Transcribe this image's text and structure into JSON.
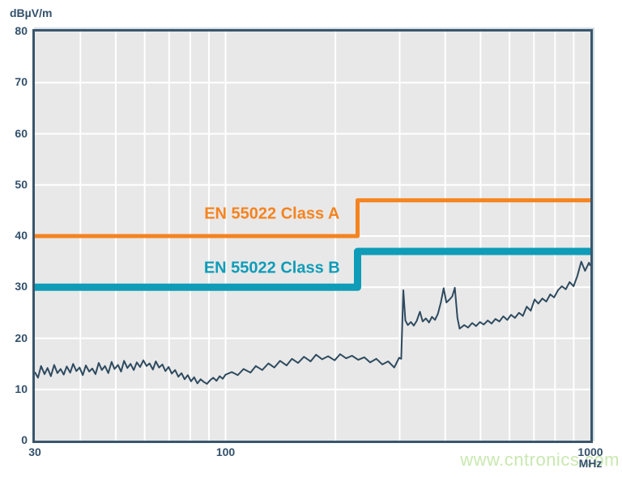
{
  "page": {
    "watermark": "www.cntronics.com"
  },
  "chart_data": {
    "type": "line",
    "title": "",
    "ylabel": "dBµV/m",
    "xlabel": "MHz",
    "x_unit": "MHz",
    "x_scale": "log",
    "xlim": [
      30,
      1000
    ],
    "ylim": [
      0,
      80
    ],
    "grid": true,
    "legend_position": "inline-annotations",
    "x_ticks": [
      {
        "value": 30,
        "label": "30"
      },
      {
        "value": 100,
        "label": "100"
      },
      {
        "value": 1000,
        "label": "1000"
      }
    ],
    "y_ticks": [
      80,
      70,
      60,
      50,
      40,
      30,
      20,
      10,
      0
    ],
    "x_gridlines": [
      40,
      50,
      60,
      70,
      80,
      90,
      100,
      200,
      300,
      400,
      500,
      600,
      700,
      800,
      900
    ],
    "y_gridlines": [
      10,
      20,
      30,
      40,
      50,
      60,
      70
    ],
    "colors": {
      "class_a": "#F5831F",
      "class_b": "#0E9CB8",
      "measurement": "#2E4A5F",
      "axis": "#3A566C",
      "plot_bg": "#E8E8E8",
      "gridline": "#FFFFFF",
      "tick_label": "#33506B",
      "watermark": "#C9E8B0"
    },
    "series": [
      {
        "name": "EN 55022 Class A",
        "kind": "limit-line",
        "color_key": "class_a",
        "width": 5,
        "points": [
          [
            30,
            40
          ],
          [
            230,
            40
          ],
          [
            230,
            47
          ],
          [
            1000,
            47
          ]
        ]
      },
      {
        "name": "EN 55022 Class B",
        "kind": "limit-line",
        "color_key": "class_b",
        "width": 9,
        "points": [
          [
            30,
            30
          ],
          [
            230,
            30
          ],
          [
            230,
            37
          ],
          [
            1000,
            37
          ]
        ]
      },
      {
        "name": "radiated-emission-measurement",
        "kind": "trace",
        "color_key": "measurement",
        "width": 2,
        "points": [
          [
            30.0,
            13.4
          ],
          [
            30.6,
            12.3
          ],
          [
            31.2,
            14.6
          ],
          [
            31.9,
            13.0
          ],
          [
            32.5,
            14.2
          ],
          [
            33.2,
            12.6
          ],
          [
            33.9,
            14.8
          ],
          [
            34.6,
            13.2
          ],
          [
            35.3,
            14.0
          ],
          [
            36.0,
            12.9
          ],
          [
            36.7,
            14.5
          ],
          [
            37.5,
            13.3
          ],
          [
            38.2,
            15.0
          ],
          [
            39.0,
            13.6
          ],
          [
            39.8,
            14.3
          ],
          [
            40.6,
            12.8
          ],
          [
            41.4,
            14.7
          ],
          [
            42.3,
            13.5
          ],
          [
            43.1,
            14.1
          ],
          [
            44.0,
            13.0
          ],
          [
            44.9,
            15.2
          ],
          [
            45.8,
            13.8
          ],
          [
            46.7,
            14.6
          ],
          [
            47.7,
            13.2
          ],
          [
            48.7,
            15.4
          ],
          [
            49.6,
            14.0
          ],
          [
            50.7,
            14.8
          ],
          [
            51.7,
            13.5
          ],
          [
            52.7,
            15.6
          ],
          [
            53.8,
            14.2
          ],
          [
            54.9,
            15.0
          ],
          [
            56.0,
            13.8
          ],
          [
            57.1,
            15.3
          ],
          [
            58.3,
            14.4
          ],
          [
            59.5,
            15.7
          ],
          [
            60.7,
            14.6
          ],
          [
            61.9,
            15.1
          ],
          [
            63.2,
            13.9
          ],
          [
            64.4,
            15.5
          ],
          [
            65.7,
            14.3
          ],
          [
            67.1,
            14.9
          ],
          [
            68.4,
            13.6
          ],
          [
            69.8,
            14.4
          ],
          [
            71.2,
            13.1
          ],
          [
            72.7,
            13.8
          ],
          [
            74.2,
            12.5
          ],
          [
            75.7,
            13.2
          ],
          [
            77.2,
            12.0
          ],
          [
            78.8,
            12.8
          ],
          [
            80.4,
            11.6
          ],
          [
            82.0,
            12.4
          ],
          [
            83.7,
            11.2
          ],
          [
            85.4,
            12.0
          ],
          [
            87.1,
            11.5
          ],
          [
            88.9,
            11.1
          ],
          [
            90.7,
            11.8
          ],
          [
            92.5,
            12.3
          ],
          [
            94.4,
            11.7
          ],
          [
            96.3,
            12.6
          ],
          [
            98.2,
            12.1
          ],
          [
            100.0,
            12.9
          ],
          [
            104,
            13.4
          ],
          [
            108,
            12.8
          ],
          [
            112,
            14.0
          ],
          [
            117,
            13.3
          ],
          [
            121,
            14.6
          ],
          [
            126,
            13.8
          ],
          [
            131,
            15.1
          ],
          [
            136,
            14.3
          ],
          [
            141,
            15.6
          ],
          [
            147,
            14.7
          ],
          [
            152,
            16.0
          ],
          [
            158,
            15.2
          ],
          [
            164,
            16.4
          ],
          [
            171,
            15.5
          ],
          [
            177,
            16.8
          ],
          [
            184,
            15.9
          ],
          [
            191,
            16.5
          ],
          [
            199,
            15.7
          ],
          [
            206,
            16.9
          ],
          [
            214,
            16.1
          ],
          [
            222,
            16.6
          ],
          [
            231,
            15.8
          ],
          [
            240,
            16.3
          ],
          [
            249,
            15.3
          ],
          [
            259,
            16.0
          ],
          [
            269,
            14.9
          ],
          [
            279,
            15.5
          ],
          [
            290,
            14.3
          ],
          [
            299,
            16.2
          ],
          [
            303,
            16.0
          ],
          [
            307,
            29.4
          ],
          [
            311,
            23.5
          ],
          [
            316,
            22.6
          ],
          [
            322,
            23.2
          ],
          [
            328,
            22.5
          ],
          [
            334,
            23.4
          ],
          [
            341,
            25.2
          ],
          [
            347,
            23.3
          ],
          [
            354,
            23.9
          ],
          [
            361,
            23.1
          ],
          [
            368,
            24.2
          ],
          [
            375,
            23.6
          ],
          [
            382,
            24.8
          ],
          [
            389,
            27.0
          ],
          [
            396,
            29.8
          ],
          [
            403,
            27.0
          ],
          [
            411,
            27.6
          ],
          [
            418,
            28.2
          ],
          [
            425,
            29.9
          ],
          [
            432,
            24.0
          ],
          [
            438,
            21.9
          ],
          [
            451,
            22.6
          ],
          [
            462,
            22.1
          ],
          [
            474,
            23.0
          ],
          [
            486,
            22.4
          ],
          [
            498,
            23.2
          ],
          [
            510,
            22.7
          ],
          [
            523,
            23.5
          ],
          [
            536,
            22.9
          ],
          [
            549,
            23.8
          ],
          [
            563,
            23.3
          ],
          [
            577,
            24.3
          ],
          [
            592,
            23.6
          ],
          [
            606,
            24.6
          ],
          [
            621,
            24.0
          ],
          [
            637,
            25.0
          ],
          [
            653,
            24.4
          ],
          [
            669,
            26.2
          ],
          [
            686,
            25.4
          ],
          [
            703,
            27.6
          ],
          [
            720,
            26.8
          ],
          [
            738,
            27.8
          ],
          [
            757,
            27.2
          ],
          [
            776,
            28.6
          ],
          [
            795,
            28.0
          ],
          [
            815,
            29.4
          ],
          [
            835,
            30.2
          ],
          [
            856,
            29.6
          ],
          [
            877,
            31.0
          ],
          [
            899,
            30.2
          ],
          [
            921,
            32.2
          ],
          [
            944,
            35.0
          ],
          [
            967,
            33.2
          ],
          [
            991,
            34.8
          ],
          [
            1000,
            34.2
          ]
        ]
      }
    ],
    "annotations": [
      {
        "text": "EN 55022 Class A",
        "x": 134,
        "y": 44.2,
        "color_key": "class_a"
      },
      {
        "text": "EN 55022 Class B",
        "x": 134,
        "y": 33.6,
        "color_key": "class_b"
      }
    ]
  }
}
